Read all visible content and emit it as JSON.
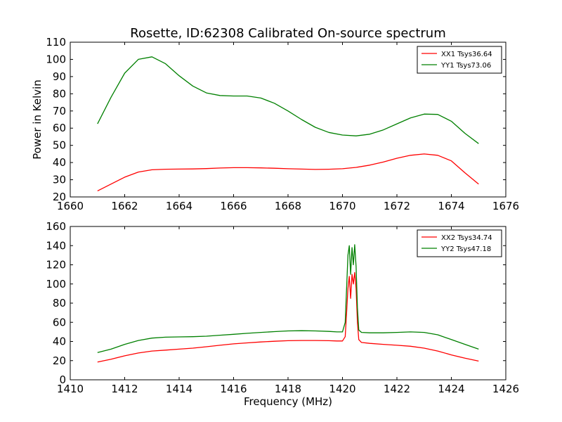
{
  "figure": {
    "title": "Rosette, ID:62308 Calibrated On-source spectrum",
    "xlabel": "Frequency (MHz)",
    "ylabel": "Power in Kelvin"
  },
  "chart_data": [
    {
      "type": "line",
      "title": "Rosette, ID:62308 Calibrated On-source spectrum",
      "xlabel": "",
      "ylabel": "Power in Kelvin",
      "xlim": [
        1660,
        1676
      ],
      "ylim": [
        20,
        110
      ],
      "xticks": [
        1660,
        1662,
        1664,
        1666,
        1668,
        1670,
        1672,
        1674,
        1676
      ],
      "yticks": [
        20,
        30,
        40,
        50,
        60,
        70,
        80,
        90,
        100,
        110
      ],
      "grid": false,
      "legend": "top-right",
      "series": [
        {
          "name": "XX1 Tsys36.64",
          "color": "#ff0000",
          "x": [
            1661.0,
            1661.5,
            1662.0,
            1662.5,
            1663.0,
            1663.5,
            1664.0,
            1664.5,
            1665.0,
            1665.5,
            1666.0,
            1666.5,
            1667.0,
            1667.5,
            1668.0,
            1668.5,
            1669.0,
            1669.5,
            1670.0,
            1670.5,
            1671.0,
            1671.5,
            1672.0,
            1672.5,
            1673.0,
            1673.5,
            1674.0,
            1674.5,
            1675.0
          ],
          "y": [
            23.5,
            27.5,
            31.5,
            34.5,
            35.8,
            36.1,
            36.2,
            36.3,
            36.5,
            36.8,
            37.0,
            37.0,
            36.9,
            36.7,
            36.4,
            36.2,
            36.0,
            36.1,
            36.4,
            37.2,
            38.5,
            40.3,
            42.5,
            44.2,
            45.0,
            44.2,
            41.0,
            34.0,
            27.5
          ]
        },
        {
          "name": "YY1 Tsys73.06",
          "color": "#008000",
          "x": [
            1661.0,
            1661.5,
            1662.0,
            1662.5,
            1663.0,
            1663.5,
            1664.0,
            1664.5,
            1665.0,
            1665.5,
            1666.0,
            1666.5,
            1667.0,
            1667.5,
            1668.0,
            1668.5,
            1669.0,
            1669.5,
            1670.0,
            1670.5,
            1671.0,
            1671.5,
            1672.0,
            1672.5,
            1673.0,
            1673.5,
            1674.0,
            1674.5,
            1675.0
          ],
          "y": [
            62.5,
            78.0,
            92.0,
            100.0,
            101.5,
            97.5,
            90.5,
            84.5,
            80.5,
            79.0,
            78.7,
            78.7,
            77.5,
            74.5,
            70.0,
            65.0,
            60.5,
            57.5,
            56.0,
            55.5,
            56.5,
            59.0,
            62.5,
            66.0,
            68.2,
            68.0,
            64.0,
            57.0,
            51.0
          ]
        }
      ]
    },
    {
      "type": "line",
      "title": "",
      "xlabel": "Frequency (MHz)",
      "ylabel": "",
      "xlim": [
        1410,
        1426
      ],
      "ylim": [
        0,
        160
      ],
      "xticks": [
        1410,
        1412,
        1414,
        1416,
        1418,
        1420,
        1422,
        1424,
        1426
      ],
      "yticks": [
        0,
        20,
        40,
        60,
        80,
        100,
        120,
        140,
        160
      ],
      "grid": false,
      "legend": "top-right",
      "series": [
        {
          "name": "XX2 Tsys34.74",
          "color": "#ff0000",
          "x": [
            1411.0,
            1411.5,
            1412.0,
            1412.5,
            1413.0,
            1413.5,
            1414.0,
            1414.5,
            1415.0,
            1415.5,
            1416.0,
            1416.5,
            1417.0,
            1417.5,
            1418.0,
            1418.5,
            1419.0,
            1419.5,
            1419.8,
            1420.0,
            1420.1,
            1420.2,
            1420.25,
            1420.3,
            1420.35,
            1420.4,
            1420.45,
            1420.5,
            1420.55,
            1420.6,
            1420.7,
            1421.0,
            1421.5,
            1422.0,
            1422.5,
            1423.0,
            1423.5,
            1424.0,
            1424.5,
            1425.0
          ],
          "y": [
            18.5,
            21.5,
            25.0,
            28.0,
            30.0,
            31.0,
            32.0,
            33.0,
            34.5,
            36.0,
            37.5,
            38.5,
            39.5,
            40.2,
            40.8,
            41.0,
            41.0,
            40.8,
            40.5,
            40.5,
            45.0,
            95.0,
            108.0,
            85.0,
            110.0,
            100.0,
            112.0,
            95.0,
            60.0,
            42.0,
            39.0,
            38.0,
            37.0,
            36.0,
            35.0,
            33.0,
            30.0,
            26.0,
            22.5,
            19.5
          ]
        },
        {
          "name": "YY2 Tsys47.18",
          "color": "#008000",
          "x": [
            1411.0,
            1411.5,
            1412.0,
            1412.5,
            1413.0,
            1413.5,
            1414.0,
            1414.5,
            1415.0,
            1415.5,
            1416.0,
            1416.5,
            1417.0,
            1417.5,
            1418.0,
            1418.5,
            1419.0,
            1419.5,
            1419.8,
            1420.0,
            1420.1,
            1420.2,
            1420.25,
            1420.3,
            1420.35,
            1420.4,
            1420.45,
            1420.5,
            1420.55,
            1420.6,
            1420.7,
            1421.0,
            1421.5,
            1422.0,
            1422.5,
            1423.0,
            1423.5,
            1424.0,
            1424.5,
            1425.0
          ],
          "y": [
            28.5,
            32.0,
            37.0,
            41.0,
            43.5,
            44.5,
            44.8,
            45.0,
            45.5,
            46.5,
            47.5,
            48.5,
            49.5,
            50.3,
            51.0,
            51.2,
            51.0,
            50.5,
            50.0,
            50.0,
            60.0,
            130.0,
            140.0,
            110.0,
            138.0,
            120.0,
            141.0,
            118.0,
            75.0,
            52.0,
            49.5,
            49.0,
            49.0,
            49.5,
            50.0,
            49.5,
            47.0,
            42.0,
            37.0,
            32.0
          ]
        }
      ]
    }
  ]
}
